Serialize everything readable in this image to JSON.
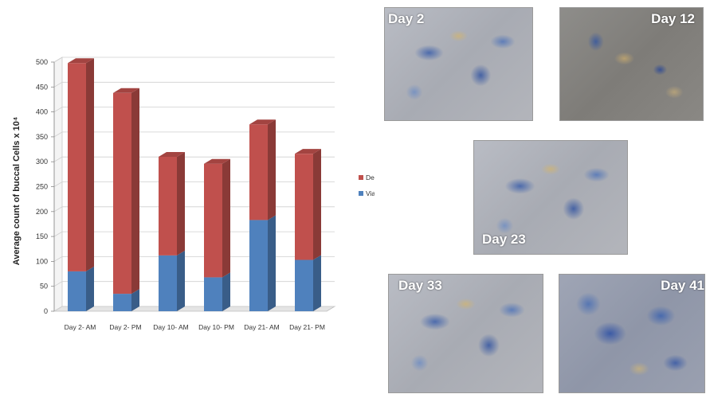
{
  "chart_data": {
    "type": "bar",
    "stacked": true,
    "three_d": true,
    "categories": [
      "Day 2- AM",
      "Day 2- PM",
      "Day 10- AM",
      "Day 10- PM",
      "Day 21- AM",
      "Day 21- PM"
    ],
    "series": [
      {
        "name": "Viable Cells",
        "color": "#4f81bd",
        "values": [
          80,
          35,
          112,
          68,
          183,
          103
        ]
      },
      {
        "name": "Dead Cells",
        "color": "#c0504d",
        "values": [
          418,
          403,
          198,
          228,
          192,
          213
        ]
      }
    ],
    "ylabel": "Average count of buccal Cells x 10⁴",
    "ylim": [
      0,
      500
    ],
    "yticks": [
      "0",
      "50",
      "100",
      "150",
      "200",
      "250",
      "300",
      "350",
      "400",
      "450",
      "500"
    ],
    "grid": true,
    "legend_position": "right"
  },
  "micrographs": [
    {
      "label": "Day 2"
    },
    {
      "label": "Day 12"
    },
    {
      "label": "Day 23"
    },
    {
      "label": "Day 33"
    },
    {
      "label": "Day 41"
    }
  ]
}
